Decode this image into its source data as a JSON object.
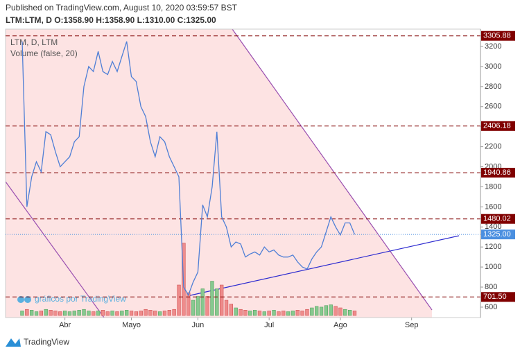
{
  "chart_data": {
    "type": "line",
    "title": "Published on TradingView.com, August 10, 2020 03:59:57 BST",
    "subtitle": "LTM:LTM, D O:1358.90 H:1358.90 L:1310.00 C:1325.00",
    "legend": "LTM, D, LTM",
    "watermark": "gráficos por TradingView",
    "footer": "TradingView",
    "color": "#4f7fd6",
    "categories": [
      null,
      null,
      null,
      null,
      null,
      null,
      null,
      null,
      null,
      null,
      null,
      null,
      "Abr",
      null,
      null,
      null,
      null,
      null,
      null,
      null,
      null,
      null,
      null,
      null,
      null,
      null,
      "Mayo",
      null,
      null,
      null,
      null,
      null,
      null,
      null,
      null,
      null,
      null,
      null,
      null,
      null,
      "Jun",
      null,
      null,
      null,
      null,
      null,
      null,
      null,
      null,
      null,
      null,
      null,
      null,
      null,
      null,
      "Jul",
      null,
      null,
      null,
      null,
      null,
      null,
      null,
      null,
      null,
      null,
      null,
      null,
      null,
      null,
      "Ago",
      null,
      null,
      null,
      null,
      null,
      null,
      null,
      null,
      null,
      null,
      null,
      null,
      null,
      null,
      "Sep",
      null,
      null,
      null,
      null,
      null,
      null,
      null,
      null,
      null,
      null,
      null,
      null,
      null,
      null
    ],
    "values": [
      null,
      null,
      null,
      3250,
      1600,
      1900,
      2050,
      1950,
      2350,
      2320,
      2150,
      2000,
      2050,
      2100,
      2250,
      2300,
      2800,
      3000,
      2950,
      3150,
      2950,
      2920,
      3050,
      2950,
      3100,
      3250,
      2900,
      2850,
      2600,
      2500,
      2250,
      2100,
      2300,
      2250,
      2100,
      2000,
      1900,
      800,
      720,
      850,
      950,
      1620,
      1500,
      1800,
      2350,
      1500,
      1400,
      1200,
      1250,
      1230,
      1100,
      1130,
      1150,
      1120,
      1200,
      1150,
      1170,
      1120,
      1100,
      1100,
      1120,
      1050,
      1000,
      980,
      1080,
      1150,
      1200,
      1350,
      1500,
      1400,
      1320,
      1440,
      1440,
      1325,
      null,
      null,
      null,
      null,
      null,
      null,
      null,
      null,
      null,
      null,
      null,
      null,
      null,
      null,
      null,
      null,
      null,
      null,
      null,
      null,
      null,
      null,
      null,
      null,
      null,
      null
    ],
    "volume": {
      "label": "Volume (false, 20)",
      "ylim": [
        0,
        100
      ],
      "up_color": "#86c98f",
      "down_color": "#ee8c8c",
      "values": [
        null,
        null,
        null,
        6,
        8,
        7,
        5,
        6,
        8,
        7,
        6,
        5,
        6,
        5,
        6,
        7,
        8,
        6,
        5,
        6,
        7,
        5,
        6,
        5,
        6,
        7,
        6,
        5,
        6,
        8,
        7,
        6,
        5,
        6,
        7,
        8,
        40,
        95,
        30,
        20,
        25,
        35,
        25,
        45,
        35,
        40,
        20,
        15,
        10,
        8,
        7,
        6,
        7,
        6,
        5,
        6,
        7,
        5,
        6,
        5,
        6,
        7,
        6,
        8,
        10,
        12,
        11,
        13,
        14,
        12,
        10,
        8,
        7,
        6,
        null,
        null,
        null,
        null,
        null,
        null,
        null,
        null,
        null,
        null,
        null,
        null,
        null,
        null,
        null,
        null,
        null,
        null,
        null,
        null,
        null,
        null,
        null,
        null,
        null,
        null
      ]
    },
    "ylim": [
      496,
      3373
    ],
    "yticks": [
      600,
      800,
      1000,
      1200,
      1400,
      1600,
      1800,
      2000,
      2200,
      2400,
      2600,
      2800,
      3000,
      3200
    ],
    "levels": [
      3305.88,
      2406.18,
      1940.86,
      1480.02,
      {
        "value": 701.5,
        "label": "701.50"
      }
    ],
    "level_color": "#800000",
    "last_price": {
      "value": 1325,
      "label": "1325.00"
    },
    "last_price_color": "#4a8fe0",
    "grid": false
  }
}
